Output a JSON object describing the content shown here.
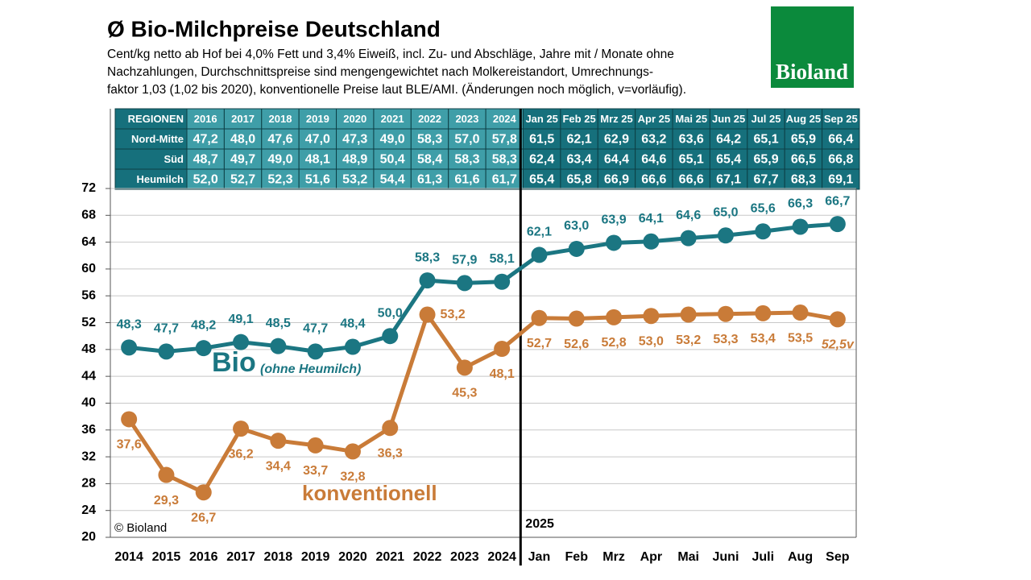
{
  "chart_data": {
    "type": "line",
    "title": "Ø Bio-Milchpreise Deutschland",
    "subtitle": [
      "Cent/kg netto ab Hof bei 4,0% Fett und 3,4% Eiweiß, incl. Zu- und Abschläge, Jahre mit / Monate ohne",
      "Nachzahlungen, Durchschnittspreise sind mengengewichtet nach Molkereistandort, Umrechnungs-",
      "faktor 1,03 (1,02 bis 2020), konventionelle Preise laut BLE/AMI. (Änderungen noch möglich, v=vorläufig)."
    ],
    "logo": "Bioland",
    "table": {
      "header": [
        "REGIONEN",
        "2016",
        "2017",
        "2018",
        "2019",
        "2020",
        "2021",
        "2022",
        "2023",
        "2024",
        "Jan 25",
        "Feb 25",
        "Mrz 25",
        "Apr 25",
        "Mai 25",
        "Jun 25",
        "Jul 25",
        "Aug 25",
        "Sep 25"
      ],
      "rows": [
        [
          "Nord-Mitte",
          "47,2",
          "48,0",
          "47,6",
          "47,0",
          "47,3",
          "49,0",
          "58,3",
          "57,0",
          "57,8",
          "61,5",
          "62,1",
          "62,9",
          "63,2",
          "63,6",
          "64,2",
          "65,1",
          "65,9",
          "66,4"
        ],
        [
          "Süd",
          "48,7",
          "49,7",
          "49,0",
          "48,1",
          "48,9",
          "50,4",
          "58,4",
          "58,3",
          "58,3",
          "62,4",
          "63,4",
          "64,4",
          "64,6",
          "65,1",
          "65,4",
          "65,9",
          "66,5",
          "66,8"
        ],
        [
          "Heumilch",
          "52,0",
          "52,7",
          "52,3",
          "51,6",
          "53,2",
          "54,4",
          "61,3",
          "61,6",
          "61,7",
          "65,4",
          "65,8",
          "66,9",
          "66,6",
          "66,6",
          "67,1",
          "67,7",
          "68,3",
          "69,1"
        ]
      ]
    },
    "categories": [
      "2014",
      "2015",
      "2016",
      "2017",
      "2018",
      "2019",
      "2020",
      "2021",
      "2022",
      "2023",
      "2024",
      "Jan",
      "Feb",
      "Mrz",
      "Apr",
      "Mai",
      "Juni",
      "Juli",
      "Aug",
      "Sep"
    ],
    "series": [
      {
        "name": "Bio",
        "color": "#1b7682",
        "values": [
          48.3,
          47.7,
          48.2,
          49.1,
          48.5,
          47.7,
          48.4,
          50.0,
          58.3,
          57.9,
          58.1,
          62.1,
          63.0,
          63.9,
          64.1,
          64.6,
          65.0,
          65.6,
          66.3,
          66.7
        ],
        "value_labels": [
          "48,3",
          "47,7",
          "48,2",
          "49,1",
          "48,5",
          "47,7",
          "48,4",
          "50,0",
          "58,3",
          "57,9",
          "58,1",
          "62,1",
          "63,0",
          "63,9",
          "64,1",
          "64,6",
          "65,0",
          "65,6",
          "66,3",
          "66,7"
        ]
      },
      {
        "name": "konventionell",
        "color": "#c97b38",
        "values": [
          37.6,
          29.3,
          26.7,
          36.2,
          34.4,
          33.7,
          32.8,
          36.3,
          53.2,
          45.3,
          48.1,
          52.7,
          52.6,
          52.8,
          53.0,
          53.2,
          53.3,
          53.4,
          53.5,
          52.5
        ],
        "value_labels": [
          "37,6",
          "29,3",
          "26,7",
          "36,2",
          "34,4",
          "33,7",
          "32,8",
          "36,3",
          "53,2",
          "45,3",
          "48,1",
          "52,7",
          "52,6",
          "52,8",
          "53,0",
          "53,2",
          "53,3",
          "53,4",
          "53,5",
          "52,5v"
        ]
      }
    ],
    "bio_note": "(ohne Heumilch)",
    "copyright": "© Bioland",
    "divider_label": "2025",
    "ylim": [
      20,
      72
    ],
    "yticks": [
      20,
      24,
      28,
      32,
      36,
      40,
      44,
      48,
      52,
      56,
      60,
      64,
      68,
      72
    ],
    "grid": true
  }
}
